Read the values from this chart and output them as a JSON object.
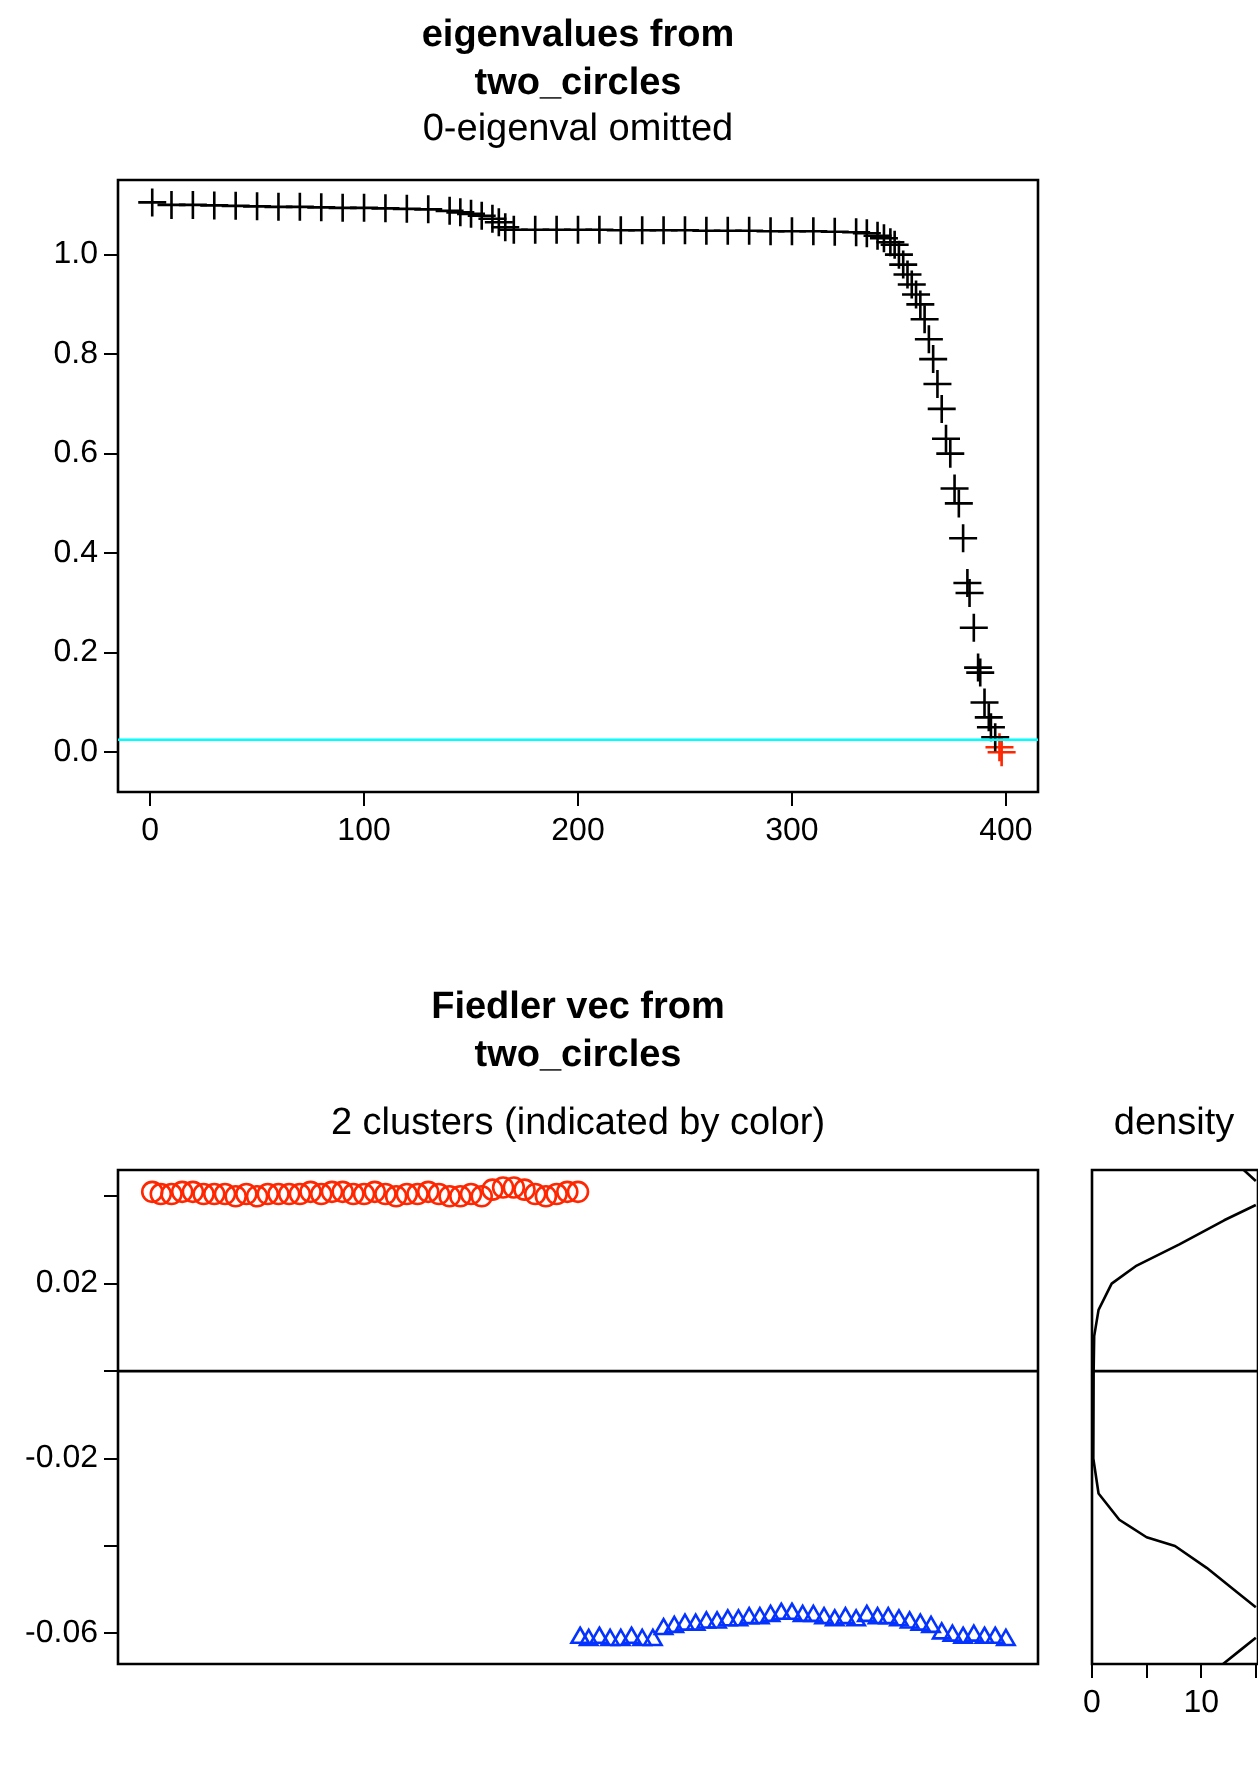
{
  "chart_data": [
    {
      "type": "scatter",
      "title": "eigenvalues from\ntwo_circles",
      "subtitle": "0-eigenval omitted",
      "marker": "cross",
      "grid": false,
      "legend": false,
      "series": [
        {
          "color": "#000000",
          "x": [
            1,
            10,
            20,
            30,
            40,
            50,
            60,
            70,
            80,
            90,
            100,
            110,
            120,
            130,
            140,
            145,
            150,
            155,
            160,
            163,
            166,
            170,
            180,
            190,
            200,
            210,
            220,
            230,
            240,
            250,
            260,
            270,
            280,
            290,
            300,
            310,
            320,
            330,
            335,
            340,
            343,
            346,
            348,
            350,
            352,
            354,
            356,
            358,
            360,
            362,
            364,
            366,
            368,
            370,
            372,
            374,
            376,
            378,
            380,
            382,
            383,
            385,
            387,
            388,
            390,
            392,
            393,
            395
          ],
          "values": [
            1.105,
            1.1,
            1.1,
            1.099,
            1.098,
            1.097,
            1.096,
            1.096,
            1.095,
            1.094,
            1.094,
            1.093,
            1.092,
            1.091,
            1.088,
            1.085,
            1.082,
            1.078,
            1.072,
            1.065,
            1.055,
            1.05,
            1.05,
            1.05,
            1.05,
            1.05,
            1.049,
            1.049,
            1.049,
            1.049,
            1.048,
            1.048,
            1.048,
            1.047,
            1.047,
            1.047,
            1.046,
            1.045,
            1.043,
            1.038,
            1.033,
            1.025,
            1.02,
            1.0,
            0.98,
            0.96,
            0.94,
            0.92,
            0.9,
            0.87,
            0.83,
            0.79,
            0.74,
            0.69,
            0.63,
            0.6,
            0.53,
            0.5,
            0.43,
            0.34,
            0.32,
            0.25,
            0.17,
            0.16,
            0.1,
            0.07,
            0.05,
            0.03
          ]
        },
        {
          "color": "#ff2600",
          "x": [
            397,
            398
          ],
          "values": [
            0.01,
            0.0
          ]
        }
      ],
      "xlim": [
        -15,
        415
      ],
      "xticks": [
        0,
        100,
        200,
        300,
        400
      ],
      "ylim": [
        -0.08,
        1.15
      ],
      "yticks": [
        {
          "value": 0,
          "label": "0.0"
        },
        0.2,
        0.4,
        0.6,
        0.8,
        {
          "value": 1,
          "label": "1.0"
        }
      ],
      "ref_lines": [
        {
          "axis": "y",
          "value": 0.025,
          "color": "#00ffff"
        }
      ]
    },
    {
      "type": "scatter",
      "title": "Fiedler vec from\ntwo_circles",
      "subtitle": "2 clusters (indicated by color)",
      "grid": false,
      "legend": false,
      "tick_labels": "y",
      "series": [
        {
          "color": "#ff2600",
          "marker": "circle",
          "x": [
            1,
            5,
            10,
            15,
            20,
            25,
            30,
            35,
            40,
            45,
            50,
            55,
            60,
            65,
            70,
            75,
            80,
            85,
            90,
            95,
            100,
            105,
            110,
            115,
            120,
            125,
            130,
            135,
            140,
            145,
            150,
            155,
            160,
            165,
            170,
            175,
            180,
            185,
            190,
            195,
            200
          ],
          "values": [
            0.041,
            0.0405,
            0.0405,
            0.041,
            0.041,
            0.0405,
            0.0405,
            0.0405,
            0.04,
            0.0405,
            0.04,
            0.0405,
            0.0405,
            0.0405,
            0.0405,
            0.041,
            0.0405,
            0.041,
            0.041,
            0.0405,
            0.0405,
            0.041,
            0.0405,
            0.04,
            0.0405,
            0.0405,
            0.041,
            0.0405,
            0.04,
            0.04,
            0.0405,
            0.04,
            0.0415,
            0.042,
            0.042,
            0.0415,
            0.0405,
            0.04,
            0.0405,
            0.041,
            0.041
          ]
        },
        {
          "color": "#0433ff",
          "marker": "triangle",
          "x": [
            201,
            205,
            210,
            215,
            220,
            225,
            230,
            235,
            240,
            245,
            250,
            255,
            260,
            265,
            270,
            275,
            280,
            285,
            290,
            295,
            300,
            305,
            310,
            315,
            320,
            325,
            330,
            335,
            340,
            345,
            350,
            355,
            360,
            365,
            370,
            375,
            380,
            385,
            390,
            395,
            400
          ],
          "values": [
            -0.061,
            -0.0615,
            -0.061,
            -0.0615,
            -0.0615,
            -0.061,
            -0.0615,
            -0.0615,
            -0.059,
            -0.0585,
            -0.058,
            -0.058,
            -0.0575,
            -0.0575,
            -0.057,
            -0.057,
            -0.0565,
            -0.0565,
            -0.056,
            -0.0555,
            -0.0555,
            -0.056,
            -0.056,
            -0.0565,
            -0.057,
            -0.0565,
            -0.057,
            -0.056,
            -0.0565,
            -0.0565,
            -0.057,
            -0.0575,
            -0.058,
            -0.0585,
            -0.06,
            -0.0605,
            -0.061,
            -0.0605,
            -0.061,
            -0.061,
            -0.0615
          ]
        }
      ],
      "xlim": [
        -15,
        415
      ],
      "ylim": [
        -0.067,
        0.046
      ],
      "yticks": [
        {
          "value": 0.04,
          "label": null
        },
        0.02,
        {
          "value": 0,
          "label": null
        },
        -0.02,
        {
          "value": -0.04,
          "label": null
        },
        -0.06
      ],
      "ref_lines": [
        {
          "axis": "y",
          "value": 0,
          "color": "#000000"
        }
      ]
    },
    {
      "type": "line",
      "subtitle": "density",
      "grid": false,
      "legend": false,
      "tick_labels": "x",
      "marker": "none",
      "series": [
        {
          "color": "#000000",
          "x": [
            13.9,
            15
          ],
          "values": [
            0.046,
            0.0435
          ]
        },
        {
          "color": "#000000",
          "x": [
            15,
            12.1,
            8,
            4,
            1.8,
            0.6,
            0.2,
            0.15,
            0.12,
            0.6,
            2.5,
            5,
            7.6,
            10.5,
            13,
            15
          ],
          "values": [
            0.038,
            0.0345,
            0.029,
            0.024,
            0.02,
            0.014,
            0.008,
            0,
            -0.02,
            -0.028,
            -0.034,
            -0.038,
            -0.04,
            -0.045,
            -0.05,
            -0.054
          ]
        },
        {
          "color": "#000000",
          "x": [
            15,
            13.5,
            12
          ],
          "values": [
            -0.061,
            -0.064,
            -0.067
          ]
        }
      ],
      "xlim": [
        0,
        15.2
      ],
      "xticks": [
        0,
        {
          "value": 5,
          "label": null
        },
        10,
        {
          "value": 15,
          "label": null
        }
      ],
      "ylim": [
        -0.067,
        0.046
      ],
      "ref_lines": [
        {
          "axis": "y",
          "value": 0,
          "color": "#000000"
        }
      ]
    }
  ]
}
